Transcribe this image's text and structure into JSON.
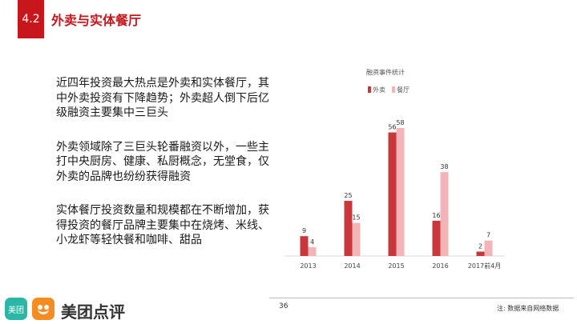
{
  "header": {
    "section_number": "4.2",
    "title": "外卖与实体餐厅"
  },
  "paragraphs": [
    "近四年投资最大热点是外卖和实体餐厅，其中外卖投资有下降趋势；外卖超人倒下后亿级融资主要集中三巨头",
    "外卖领域除了三巨头轮番融资以外，一些主打中央厨房、健康、私厨概念，无堂食，仅外卖的品牌也纷纷获得融资",
    "实体餐厅投资数量和规模都在不断增加，获得投资的餐厅品牌主要集中在烧烤、米线、小龙虾等轻快餐和咖啡、甜品"
  ],
  "chart_data": {
    "type": "bar",
    "title": "融资事件统计",
    "categories": [
      "2013",
      "2014",
      "2015",
      "2016",
      "2017前4月"
    ],
    "series": [
      {
        "name": "外卖",
        "values": [
          9,
          25,
          56,
          16,
          2
        ],
        "color": "#c9373a"
      },
      {
        "name": "餐厅",
        "values": [
          4,
          15,
          58,
          38,
          7
        ],
        "color": "#f2b4b6"
      }
    ],
    "ylim": [
      0,
      58
    ],
    "legend_position": "top-left",
    "grid": false
  },
  "footer": {
    "page_number": "36",
    "source_note": "注: 数据来自网络数据"
  },
  "logo": {
    "badge_text": "美团",
    "brand_text": "美团点评"
  }
}
